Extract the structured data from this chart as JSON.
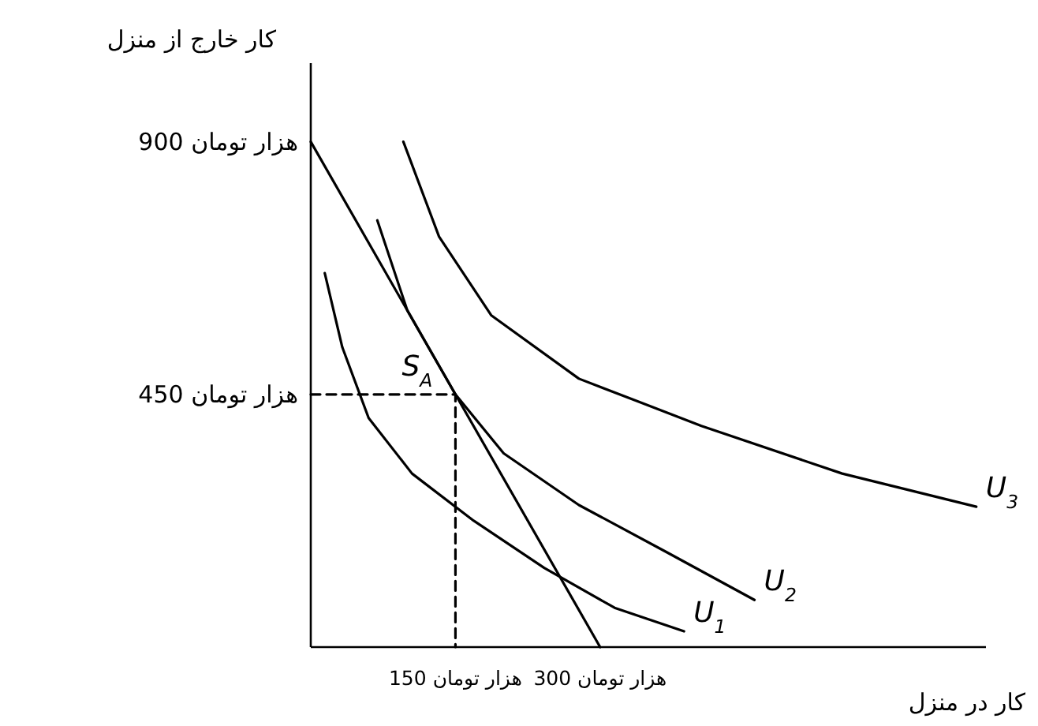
{
  "chart_data": {
    "type": "line",
    "xlabel": "کار در منزل",
    "ylabel": "کار خارج از منزل",
    "xlim": [
      0,
      700
    ],
    "ylim": [
      0,
      1040
    ],
    "xticks": [
      {
        "value": 150,
        "label": "150 هزار تومان"
      },
      {
        "value": 300,
        "label": "300 هزار تومان"
      }
    ],
    "yticks": [
      {
        "value": 450,
        "label": "450 هزار تومان"
      },
      {
        "value": 900,
        "label": "900 هزار تومان"
      }
    ],
    "marker": "none",
    "series": [
      {
        "color": "#000000",
        "line_style": "solid",
        "x": [
          0,
          300
        ],
        "values": [
          900,
          0
        ]
      },
      {
        "color": "#000000",
        "line_style": "dashed",
        "x": [
          0,
          150,
          150
        ],
        "values": [
          450,
          450,
          0
        ]
      },
      {
        "name": "U$_{1}$",
        "color": "#000000",
        "line_style": "solid",
        "x": [
          14.5,
          32.7,
          60,
          105,
          169,
          242,
          315,
          387
        ],
        "values": [
          666,
          534,
          408,
          309,
          225,
          141,
          70,
          28
        ]
      },
      {
        "name": "U$_{2}$",
        "color": "#000000",
        "line_style": "solid",
        "x": [
          69,
          100,
          150,
          200,
          278,
          369,
          460
        ],
        "values": [
          760,
          600,
          450,
          345,
          253,
          169,
          84
        ]
      },
      {
        "name": "U$_{3}$",
        "color": "#000000",
        "line_style": "solid",
        "x": [
          96,
          133,
          187,
          278,
          405,
          551,
          690
        ],
        "values": [
          900,
          731,
          591,
          478,
          394,
          309,
          250
        ]
      }
    ],
    "annotations": [
      {
        "text": "S$_{A}$",
        "x": 150,
        "y": 450
      }
    ]
  }
}
